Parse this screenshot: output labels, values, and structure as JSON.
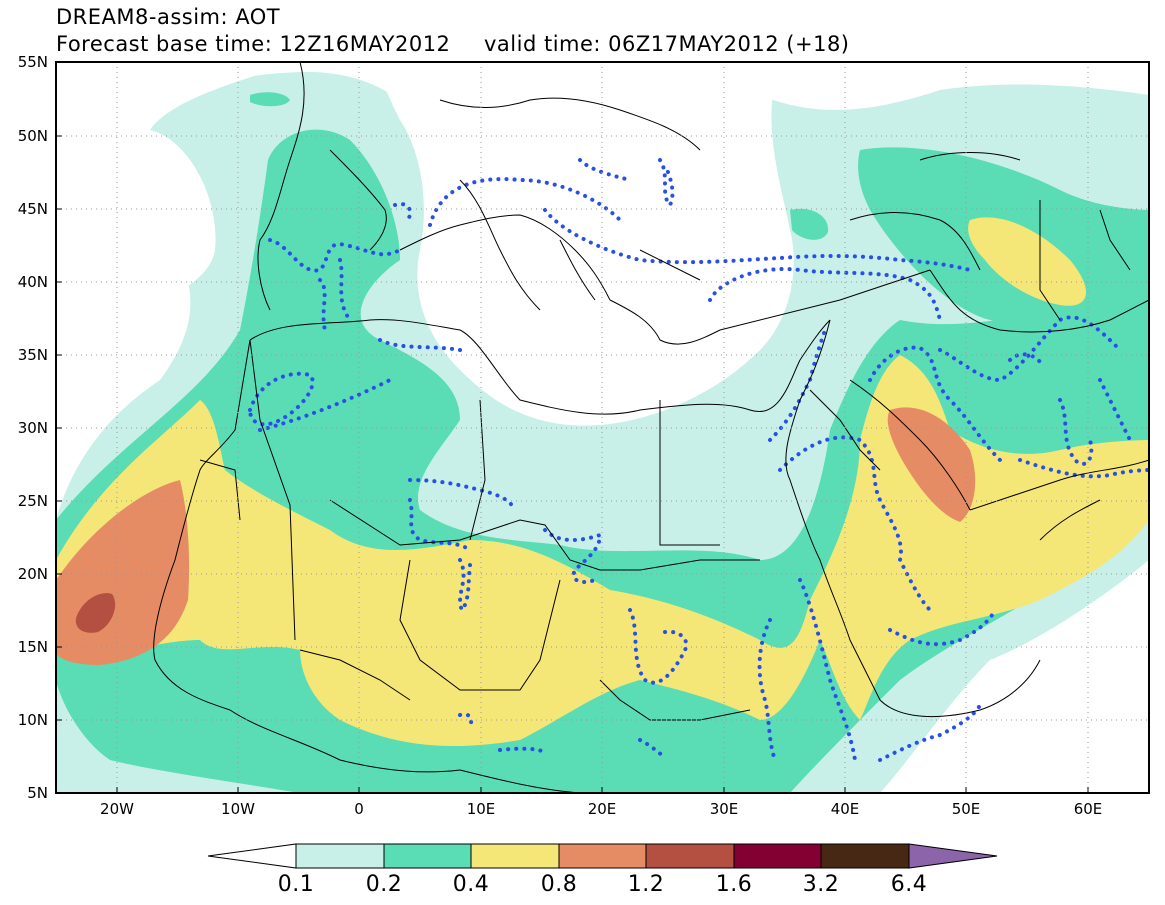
{
  "title": {
    "line1": "DREAM8-assim: AOT",
    "base_time": "Forecast base time: 12Z16MAY2012",
    "valid_time": "valid time: 06Z17MAY2012 (+18)"
  },
  "axes": {
    "lat_labels": [
      "55N",
      "50N",
      "45N",
      "40N",
      "35N",
      "30N",
      "25N",
      "20N",
      "15N",
      "10N",
      "5N"
    ],
    "lon_labels": [
      "20W",
      "10W",
      "0",
      "10E",
      "20E",
      "30E",
      "40E",
      "50E",
      "60E"
    ]
  },
  "colorbar": {
    "levels": [
      "0.1",
      "0.2",
      "0.4",
      "0.8",
      "1.2",
      "1.6",
      "3.2",
      "6.4"
    ],
    "colors": [
      "#ffffff",
      "#c8f0e8",
      "#5adcb4",
      "#f5e678",
      "#e68c64",
      "#b45042",
      "#820032",
      "#462814",
      "#8c64aa"
    ]
  },
  "map": {
    "region": "North Africa, Mediterranean and Middle East",
    "extent": {
      "lon_min": -25,
      "lon_max": 65,
      "lat_min": 5,
      "lat_max": 55
    },
    "variable": "Aerosol Optical Thickness"
  }
}
